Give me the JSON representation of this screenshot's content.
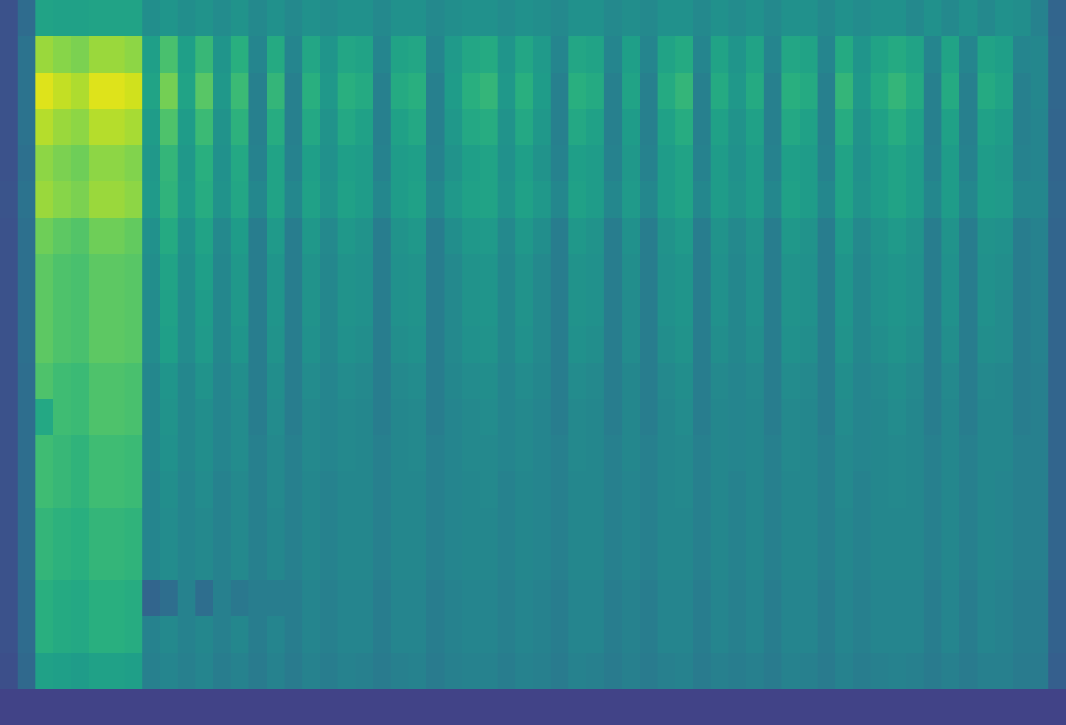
{
  "chart_data": {
    "type": "heatmap",
    "color": "Viridis",
    "zlim": [
      0,
      100
    ],
    "tick_labels": false,
    "cells": [
      [
        25,
        35,
        58,
        57,
        57,
        58,
        58,
        58,
        49,
        52,
        49,
        51,
        48,
        51,
        47,
        50,
        47,
        50,
        48,
        50,
        50,
        47,
        50,
        50,
        47,
        49,
        50,
        50,
        48,
        50,
        49,
        47,
        50,
        50,
        47,
        49,
        47,
        50,
        50,
        47,
        50,
        48,
        50,
        47,
        50,
        50,
        47,
        50,
        48,
        50,
        50,
        47,
        50,
        47,
        50,
        47,
        50,
        49,
        44,
        32
      ],
      [
        25,
        38,
        85,
        82,
        80,
        85,
        85,
        83,
        56,
        71,
        56,
        67,
        52,
        63,
        45,
        61,
        45,
        59,
        52,
        59,
        58,
        45,
        58,
        59,
        45,
        54,
        59,
        61,
        52,
        59,
        54,
        45,
        59,
        58,
        45,
        56,
        45,
        58,
        61,
        45,
        58,
        52,
        58,
        45,
        59,
        58,
        45,
        61,
        52,
        58,
        61,
        58,
        45,
        58,
        45,
        58,
        56,
        45,
        46,
        33
      ],
      [
        25,
        38,
        95,
        91,
        88,
        95,
        95,
        93,
        58,
        79,
        58,
        74,
        53,
        68,
        43,
        66,
        43,
        63,
        53,
        63,
        61,
        43,
        61,
        63,
        43,
        55,
        63,
        66,
        53,
        63,
        55,
        43,
        63,
        61,
        43,
        58,
        43,
        61,
        66,
        43,
        61,
        53,
        61,
        43,
        63,
        61,
        43,
        66,
        53,
        61,
        66,
        61,
        43,
        61,
        43,
        61,
        58,
        43,
        46,
        33
      ],
      [
        25,
        38,
        89,
        85,
        83,
        89,
        89,
        87,
        55,
        72,
        55,
        68,
        51,
        64,
        43,
        62,
        43,
        60,
        51,
        60,
        57,
        43,
        57,
        60,
        43,
        53,
        60,
        62,
        51,
        60,
        53,
        43,
        60,
        57,
        43,
        55,
        43,
        57,
        62,
        43,
        57,
        51,
        57,
        43,
        60,
        57,
        43,
        62,
        51,
        57,
        62,
        57,
        43,
        57,
        43,
        57,
        55,
        43,
        45,
        32
      ],
      [
        25,
        37,
        83,
        80,
        78,
        83,
        83,
        81,
        53,
        66,
        53,
        63,
        50,
        60,
        44,
        58,
        44,
        56,
        50,
        56,
        55,
        44,
        55,
        56,
        44,
        51,
        56,
        58,
        50,
        56,
        51,
        44,
        56,
        55,
        44,
        53,
        44,
        55,
        58,
        44,
        55,
        50,
        55,
        44,
        56,
        55,
        44,
        58,
        50,
        55,
        58,
        55,
        44,
        55,
        44,
        55,
        53,
        44,
        45,
        32
      ],
      [
        26,
        38,
        85,
        82,
        80,
        85,
        85,
        83,
        54,
        65,
        54,
        62,
        51,
        59,
        46,
        58,
        46,
        57,
        51,
        57,
        55,
        46,
        55,
        57,
        46,
        53,
        57,
        58,
        51,
        57,
        53,
        46,
        57,
        55,
        46,
        54,
        46,
        55,
        58,
        46,
        55,
        51,
        55,
        46,
        57,
        55,
        46,
        58,
        51,
        55,
        58,
        55,
        46,
        55,
        46,
        55,
        54,
        46,
        46,
        33
      ],
      [
        25,
        37,
        78,
        75,
        73,
        78,
        78,
        76,
        50,
        61,
        50,
        58,
        47,
        55,
        42,
        54,
        42,
        53,
        47,
        53,
        51,
        42,
        51,
        53,
        42,
        49,
        53,
        54,
        47,
        53,
        49,
        42,
        53,
        51,
        42,
        50,
        42,
        51,
        54,
        42,
        51,
        47,
        51,
        42,
        53,
        51,
        42,
        54,
        47,
        51,
        54,
        51,
        42,
        51,
        42,
        51,
        50,
        42,
        44,
        32
      ],
      [
        25,
        37,
        75,
        72,
        71,
        75,
        75,
        74,
        49,
        58,
        49,
        56,
        46,
        53,
        42,
        52,
        42,
        51,
        46,
        51,
        50,
        42,
        50,
        51,
        42,
        47,
        51,
        52,
        46,
        51,
        47,
        42,
        51,
        50,
        42,
        49,
        42,
        50,
        52,
        42,
        50,
        46,
        50,
        42,
        51,
        50,
        42,
        52,
        46,
        50,
        52,
        50,
        42,
        50,
        42,
        50,
        49,
        42,
        44,
        32
      ],
      [
        25,
        37,
        75,
        72,
        71,
        75,
        75,
        74,
        48,
        57,
        48,
        55,
        46,
        53,
        42,
        52,
        42,
        51,
        46,
        51,
        50,
        42,
        50,
        51,
        42,
        47,
        51,
        52,
        46,
        51,
        47,
        42,
        51,
        50,
        42,
        48,
        42,
        50,
        52,
        42,
        50,
        46,
        50,
        42,
        51,
        50,
        42,
        52,
        46,
        50,
        52,
        50,
        42,
        50,
        42,
        50,
        48,
        42,
        44,
        32
      ],
      [
        25,
        37,
        75,
        72,
        71,
        75,
        75,
        74,
        48,
        56,
        48,
        54,
        46,
        52,
        42,
        51,
        42,
        50,
        46,
        50,
        49,
        42,
        49,
        50,
        42,
        47,
        50,
        51,
        46,
        50,
        47,
        42,
        50,
        49,
        42,
        48,
        42,
        49,
        51,
        42,
        49,
        46,
        49,
        42,
        50,
        49,
        42,
        51,
        46,
        49,
        51,
        49,
        42,
        49,
        42,
        49,
        48,
        42,
        44,
        32
      ],
      [
        25,
        36,
        72,
        69,
        68,
        72,
        72,
        71,
        46,
        52,
        46,
        51,
        45,
        49,
        42,
        49,
        42,
        48,
        45,
        48,
        47,
        42,
        47,
        48,
        42,
        46,
        48,
        49,
        45,
        48,
        46,
        42,
        48,
        47,
        42,
        46,
        42,
        47,
        49,
        42,
        47,
        45,
        47,
        42,
        48,
        47,
        42,
        49,
        45,
        47,
        49,
        47,
        42,
        47,
        42,
        47,
        46,
        42,
        43,
        32
      ],
      [
        25,
        36,
        60,
        69,
        68,
        72,
        72,
        71,
        46,
        51,
        46,
        49,
        45,
        48,
        42,
        48,
        42,
        47,
        45,
        47,
        46,
        42,
        46,
        47,
        42,
        45,
        47,
        48,
        45,
        47,
        45,
        42,
        47,
        46,
        42,
        46,
        42,
        46,
        48,
        42,
        46,
        45,
        46,
        42,
        47,
        46,
        42,
        48,
        45,
        46,
        48,
        46,
        42,
        46,
        42,
        46,
        46,
        42,
        43,
        32
      ],
      [
        25,
        36,
        69,
        67,
        65,
        69,
        69,
        68,
        46,
        50,
        46,
        49,
        45,
        48,
        43,
        47,
        43,
        47,
        45,
        47,
        46,
        43,
        46,
        47,
        43,
        45,
        47,
        47,
        45,
        47,
        45,
        43,
        47,
        46,
        43,
        46,
        43,
        46,
        47,
        43,
        46,
        45,
        46,
        43,
        47,
        46,
        43,
        47,
        45,
        46,
        47,
        46,
        43,
        46,
        43,
        46,
        46,
        43,
        43,
        32
      ],
      [
        25,
        36,
        69,
        67,
        65,
        69,
        69,
        68,
        45,
        49,
        45,
        48,
        44,
        47,
        43,
        47,
        43,
        46,
        44,
        46,
        46,
        43,
        46,
        46,
        43,
        45,
        46,
        47,
        44,
        46,
        45,
        43,
        46,
        46,
        43,
        45,
        43,
        46,
        47,
        43,
        46,
        44,
        46,
        43,
        46,
        46,
        43,
        47,
        44,
        46,
        47,
        46,
        43,
        46,
        43,
        46,
        45,
        43,
        43,
        32
      ],
      [
        25,
        36,
        66,
        64,
        63,
        66,
        66,
        65,
        45,
        48,
        45,
        47,
        44,
        47,
        43,
        46,
        43,
        46,
        44,
        46,
        46,
        43,
        46,
        46,
        43,
        45,
        46,
        46,
        44,
        46,
        45,
        43,
        46,
        46,
        43,
        45,
        43,
        46,
        46,
        43,
        46,
        44,
        46,
        43,
        46,
        46,
        43,
        46,
        44,
        46,
        46,
        46,
        43,
        46,
        43,
        46,
        45,
        43,
        43,
        32
      ],
      [
        25,
        36,
        66,
        64,
        63,
        66,
        66,
        65,
        45,
        48,
        45,
        47,
        44,
        47,
        43,
        46,
        43,
        46,
        44,
        46,
        46,
        43,
        46,
        46,
        43,
        45,
        46,
        46,
        44,
        46,
        45,
        43,
        46,
        46,
        43,
        45,
        43,
        46,
        46,
        43,
        46,
        44,
        46,
        43,
        46,
        46,
        43,
        46,
        44,
        46,
        46,
        46,
        43,
        46,
        43,
        46,
        45,
        43,
        43,
        32
      ],
      [
        25,
        35,
        63,
        61,
        60,
        63,
        63,
        62,
        32,
        36,
        44,
        36,
        43,
        40,
        42,
        42,
        42,
        45,
        43,
        45,
        45,
        42,
        45,
        45,
        42,
        44,
        45,
        45,
        43,
        45,
        44,
        42,
        45,
        45,
        42,
        44,
        42,
        45,
        45,
        42,
        45,
        43,
        45,
        42,
        45,
        45,
        42,
        45,
        43,
        45,
        45,
        45,
        42,
        45,
        42,
        45,
        44,
        42,
        42,
        31
      ],
      [
        25,
        35,
        63,
        61,
        60,
        63,
        63,
        62,
        44,
        47,
        44,
        46,
        43,
        46,
        42,
        45,
        42,
        45,
        43,
        45,
        45,
        42,
        45,
        45,
        42,
        44,
        45,
        45,
        43,
        45,
        44,
        42,
        45,
        45,
        42,
        44,
        42,
        45,
        45,
        42,
        45,
        43,
        45,
        42,
        45,
        45,
        42,
        45,
        43,
        45,
        45,
        45,
        42,
        45,
        42,
        45,
        44,
        42,
        42,
        31
      ],
      [
        24,
        34,
        57,
        56,
        55,
        57,
        57,
        56,
        43,
        45,
        43,
        45,
        42,
        44,
        41,
        44,
        41,
        44,
        42,
        44,
        43,
        41,
        43,
        44,
        41,
        43,
        44,
        44,
        42,
        44,
        43,
        41,
        44,
        43,
        41,
        43,
        41,
        43,
        44,
        41,
        43,
        42,
        43,
        41,
        44,
        43,
        41,
        44,
        42,
        43,
        44,
        43,
        41,
        43,
        41,
        43,
        43,
        41,
        41,
        30
      ],
      [
        20,
        20,
        20,
        20,
        20,
        20,
        20,
        20,
        20,
        20,
        20,
        20,
        20,
        20,
        20,
        20,
        20,
        20,
        20,
        20,
        20,
        20,
        20,
        20,
        20,
        20,
        20,
        20,
        20,
        20,
        20,
        20,
        20,
        20,
        20,
        20,
        20,
        20,
        20,
        20,
        20,
        20,
        20,
        20,
        20,
        20,
        20,
        20,
        20,
        20,
        20,
        20,
        20,
        20,
        20,
        20,
        20,
        20,
        20,
        20
      ]
    ]
  }
}
